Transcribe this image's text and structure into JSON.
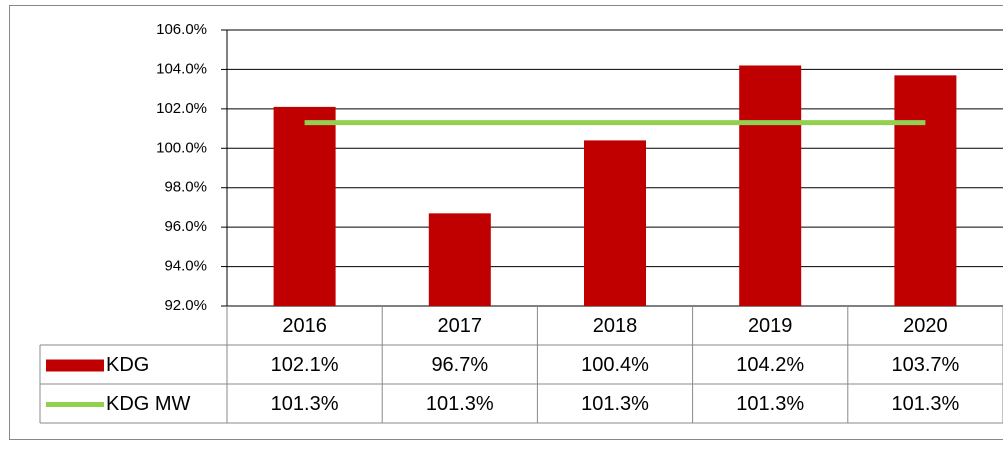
{
  "chart_data": {
    "type": "bar",
    "categories": [
      "2016",
      "2017",
      "2018",
      "2019",
      "2020"
    ],
    "series": [
      {
        "name": "KDG",
        "type": "bar",
        "color": "#c00000",
        "values": [
          102.1,
          96.7,
          100.4,
          104.2,
          103.7
        ],
        "value_labels": [
          "102.1%",
          "96.7%",
          "100.4%",
          "104.2%",
          "103.7%"
        ]
      },
      {
        "name": "KDG MW",
        "type": "line",
        "color": "#92d050",
        "values": [
          101.3,
          101.3,
          101.3,
          101.3,
          101.3
        ],
        "value_labels": [
          "101.3%",
          "101.3%",
          "101.3%",
          "101.3%",
          "101.3%"
        ]
      }
    ],
    "ylim": [
      92,
      106
    ],
    "yticks": [
      {
        "value": 92,
        "label": "92.0%"
      },
      {
        "value": 94,
        "label": "94.0%"
      },
      {
        "value": 96,
        "label": "96.0%"
      },
      {
        "value": 98,
        "label": "98.0%"
      },
      {
        "value": 100,
        "label": "100.0%"
      },
      {
        "value": 102,
        "label": "102.0%"
      },
      {
        "value": 104,
        "label": "104.0%"
      },
      {
        "value": 106,
        "label": "106.0%"
      }
    ],
    "grid": true
  }
}
